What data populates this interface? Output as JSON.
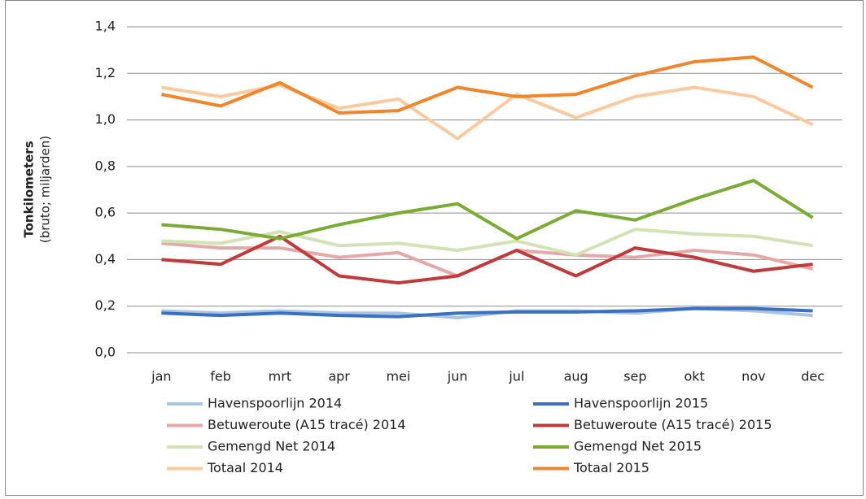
{
  "chart_data": {
    "type": "line",
    "ylabel": "Tonkilometers",
    "ylabel_sub": "(bruto; miljarden)",
    "categories": [
      "jan",
      "feb",
      "mrt",
      "apr",
      "mei",
      "jun",
      "jul",
      "aug",
      "sep",
      "okt",
      "nov",
      "dec"
    ],
    "ylim": [
      0,
      1.4
    ],
    "yticks": [
      {
        "value": 0,
        "label": "0,0"
      },
      {
        "value": 0.2,
        "label": "0,2"
      },
      {
        "value": 0.4,
        "label": "0,4"
      },
      {
        "value": 0.6,
        "label": "0,6"
      },
      {
        "value": 0.8,
        "label": "0,8"
      },
      {
        "value": 1.0,
        "label": "1,0"
      },
      {
        "value": 1.2,
        "label": "1,2"
      },
      {
        "value": 1.4,
        "label": "1,4"
      }
    ],
    "grid": true,
    "series": [
      {
        "name": "Havenspoorlijn 2014",
        "color": "#a9c4e4",
        "values": [
          0.18,
          0.17,
          0.18,
          0.17,
          0.17,
          0.15,
          0.18,
          0.18,
          0.17,
          0.19,
          0.18,
          0.16
        ]
      },
      {
        "name": "Havenspoorlijn 2015",
        "color": "#3a70c0",
        "values": [
          0.17,
          0.16,
          0.17,
          0.16,
          0.155,
          0.17,
          0.175,
          0.175,
          0.18,
          0.19,
          0.19,
          0.18
        ]
      },
      {
        "name": "Betuweroute (A15 tracé) 2014",
        "color": "#e4a8a8",
        "values": [
          0.47,
          0.45,
          0.45,
          0.41,
          0.43,
          0.33,
          0.44,
          0.42,
          0.41,
          0.44,
          0.42,
          0.36
        ]
      },
      {
        "name": "Betuweroute (A15 tracé) 2015",
        "color": "#c0393b",
        "values": [
          0.4,
          0.38,
          0.5,
          0.33,
          0.3,
          0.33,
          0.44,
          0.33,
          0.45,
          0.41,
          0.35,
          0.38
        ]
      },
      {
        "name": "Gemengd Net 2014",
        "color": "#d2e2b4",
        "values": [
          0.48,
          0.47,
          0.52,
          0.46,
          0.47,
          0.44,
          0.48,
          0.42,
          0.53,
          0.51,
          0.5,
          0.46
        ]
      },
      {
        "name": "Gemengd Net 2015",
        "color": "#7aab34",
        "values": [
          0.55,
          0.53,
          0.49,
          0.55,
          0.6,
          0.64,
          0.49,
          0.61,
          0.57,
          0.66,
          0.74,
          0.58
        ]
      },
      {
        "name": "Totaal 2014",
        "color": "#fbc99e",
        "values": [
          1.14,
          1.1,
          1.15,
          1.05,
          1.09,
          0.92,
          1.11,
          1.01,
          1.1,
          1.14,
          1.1,
          0.98
        ]
      },
      {
        "name": "Totaal 2015",
        "color": "#f0852d",
        "values": [
          1.11,
          1.06,
          1.16,
          1.03,
          1.04,
          1.14,
          1.1,
          1.11,
          1.19,
          1.25,
          1.27,
          1.14
        ]
      }
    ]
  }
}
